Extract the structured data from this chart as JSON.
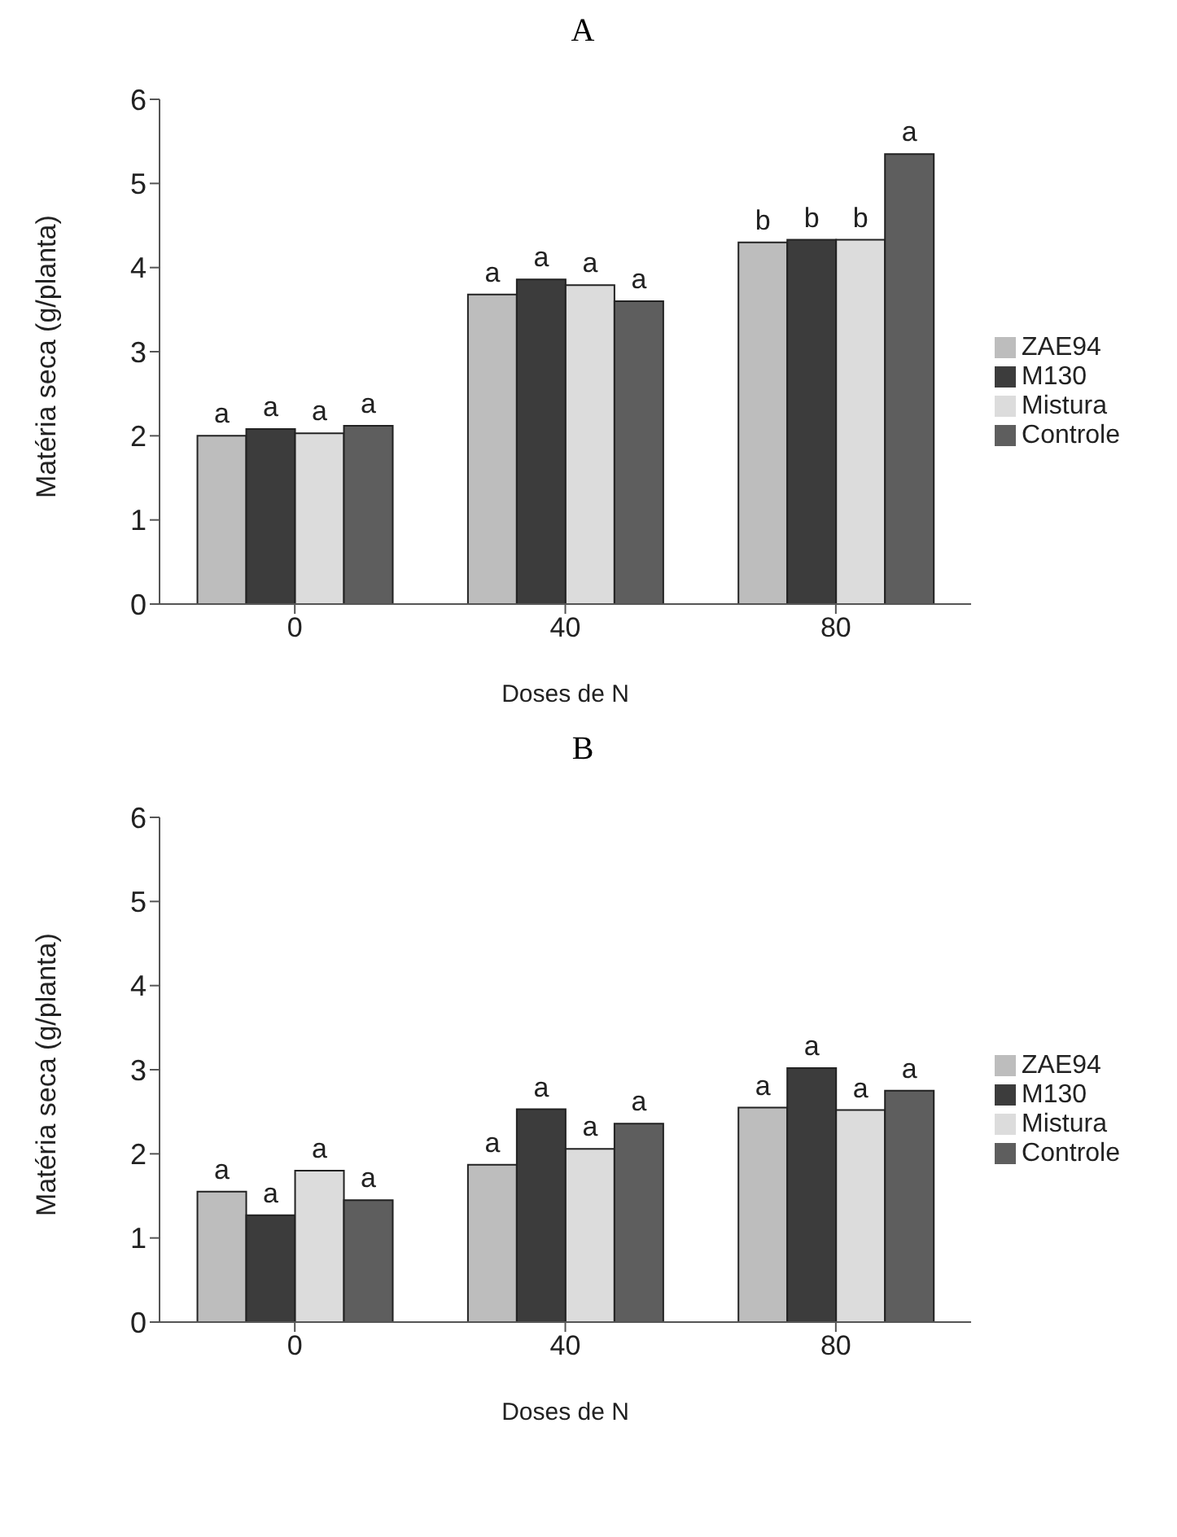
{
  "chart_data": [
    {
      "type": "bar",
      "title": "A",
      "xlabel": "Doses de N",
      "ylabel": "Matéria seca (g/planta)",
      "categories": [
        "0",
        "40",
        "80"
      ],
      "ylim": [
        0,
        6
      ],
      "yticks": [
        0,
        1,
        2,
        3,
        4,
        5,
        6
      ],
      "grid": false,
      "legend": "right",
      "series": [
        {
          "name": "ZAE94",
          "color": "#bdbdbd",
          "values": [
            2.0,
            3.68,
            4.3
          ],
          "value_labels": [
            "a",
            "a",
            "b"
          ]
        },
        {
          "name": "M130",
          "color": "#3c3c3c",
          "values": [
            2.08,
            3.86,
            4.33
          ],
          "value_labels": [
            "a",
            "a",
            "b"
          ]
        },
        {
          "name": "Mistura",
          "color": "#dcdcdc",
          "values": [
            2.03,
            3.79,
            4.33
          ],
          "value_labels": [
            "a",
            "a",
            "b"
          ]
        },
        {
          "name": "Controle",
          "color": "#5e5e5e",
          "values": [
            2.12,
            3.6,
            5.35
          ],
          "value_labels": [
            "a",
            "a",
            "a"
          ]
        }
      ]
    },
    {
      "type": "bar",
      "title": "B",
      "xlabel": "Doses de N",
      "ylabel": "Matéria seca (g/planta)",
      "categories": [
        "0",
        "40",
        "80"
      ],
      "ylim": [
        0,
        6
      ],
      "yticks": [
        0,
        1,
        2,
        3,
        4,
        5,
        6
      ],
      "grid": false,
      "legend": "right",
      "series": [
        {
          "name": "ZAE94",
          "color": "#bdbdbd",
          "values": [
            1.55,
            1.87,
            2.55
          ],
          "value_labels": [
            "a",
            "a",
            "a"
          ]
        },
        {
          "name": "M130",
          "color": "#3c3c3c",
          "values": [
            1.27,
            2.53,
            3.02
          ],
          "value_labels": [
            "a",
            "a",
            "a"
          ]
        },
        {
          "name": "Mistura",
          "color": "#dcdcdc",
          "values": [
            1.8,
            2.06,
            2.52
          ],
          "value_labels": [
            "a",
            "a",
            "a"
          ]
        },
        {
          "name": "Controle",
          "color": "#5e5e5e",
          "values": [
            1.45,
            2.36,
            2.75
          ],
          "value_labels": [
            "a",
            "a",
            "a"
          ]
        }
      ]
    }
  ]
}
